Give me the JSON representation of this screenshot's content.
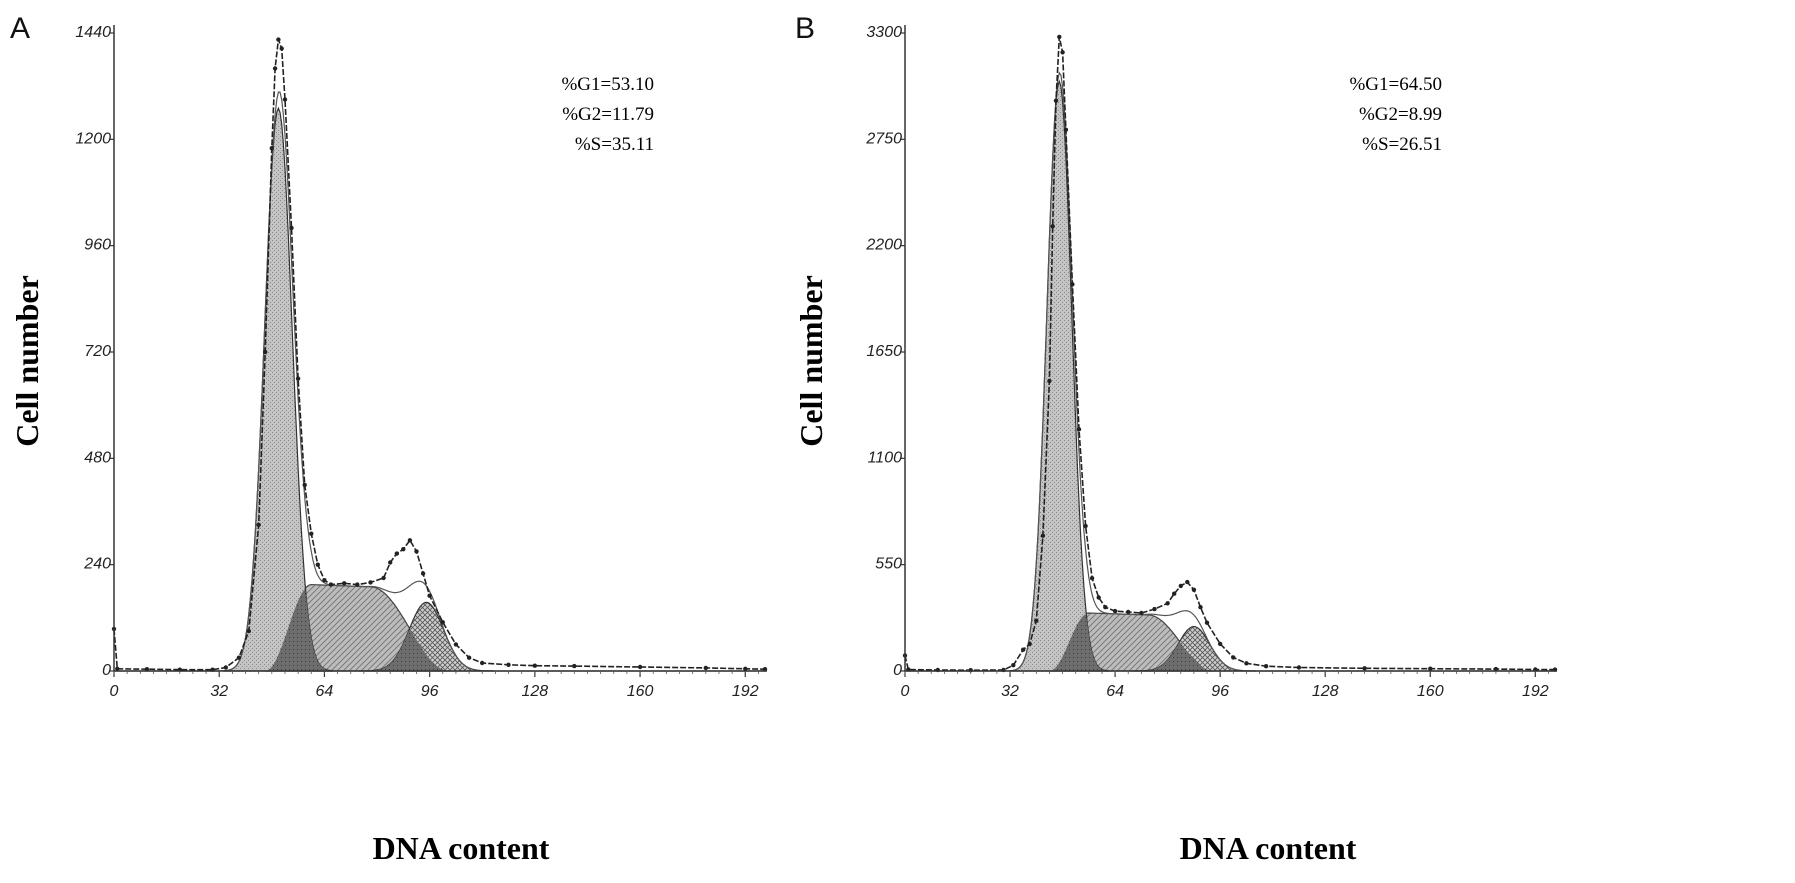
{
  "chart_data": [
    {
      "type": "area",
      "panel_label": "A",
      "xlabel": "DNA content",
      "ylabel": "Cell number",
      "xlim": [
        0,
        198
      ],
      "ylim": [
        0,
        1440
      ],
      "x_ticks": [
        0,
        32,
        64,
        96,
        128,
        160,
        192
      ],
      "y_ticks": [
        0,
        240,
        480,
        720,
        960,
        1200,
        1440
      ],
      "annotations": [
        "%G1=53.10",
        "%G2=11.79",
        "%S=35.11"
      ],
      "components": {
        "g1": {
          "center": 50,
          "sigma": 4.2,
          "peak": 1270
        },
        "g2": {
          "center": 95,
          "sigma": 5.2,
          "peak": 155
        },
        "s": {
          "start": 46,
          "end": 102,
          "left_rise": 60,
          "plateau": 195,
          "plateau_end": 78,
          "plateau_end_value": 190
        }
      },
      "measured": [
        [
          0,
          95
        ],
        [
          1,
          5
        ],
        [
          10,
          4
        ],
        [
          20,
          3
        ],
        [
          30,
          3
        ],
        [
          34,
          8
        ],
        [
          38,
          30
        ],
        [
          41,
          90
        ],
        [
          44,
          330
        ],
        [
          46,
          720
        ],
        [
          48,
          1180
        ],
        [
          49,
          1360
        ],
        [
          50,
          1425
        ],
        [
          51,
          1405
        ],
        [
          52,
          1290
        ],
        [
          54,
          1000
        ],
        [
          56,
          660
        ],
        [
          58,
          420
        ],
        [
          60,
          310
        ],
        [
          62,
          240
        ],
        [
          64,
          205
        ],
        [
          66,
          195
        ],
        [
          70,
          198
        ],
        [
          74,
          195
        ],
        [
          78,
          200
        ],
        [
          82,
          210
        ],
        [
          84,
          245
        ],
        [
          86,
          265
        ],
        [
          88,
          275
        ],
        [
          90,
          295
        ],
        [
          92,
          270
        ],
        [
          94,
          220
        ],
        [
          96,
          170
        ],
        [
          100,
          110
        ],
        [
          104,
          60
        ],
        [
          108,
          30
        ],
        [
          112,
          18
        ],
        [
          120,
          14
        ],
        [
          128,
          12
        ],
        [
          140,
          11
        ],
        [
          160,
          9
        ],
        [
          180,
          7
        ],
        [
          192,
          5
        ],
        [
          198,
          4
        ]
      ]
    },
    {
      "type": "area",
      "panel_label": "B",
      "xlabel": "DNA content",
      "ylabel": "Cell number",
      "xlim": [
        0,
        198
      ],
      "ylim": [
        0,
        3300
      ],
      "x_ticks": [
        0,
        32,
        64,
        96,
        128,
        160,
        192
      ],
      "y_ticks": [
        0,
        550,
        1100,
        1650,
        2200,
        2750,
        3300
      ],
      "annotations": [
        "%G1=64.50",
        "%G2=8.99",
        "%S=26.51"
      ],
      "components": {
        "g1": {
          "center": 47,
          "sigma": 3.8,
          "peak": 3050
        },
        "g2": {
          "center": 88,
          "sigma": 4.8,
          "peak": 230
        },
        "s": {
          "start": 44,
          "end": 94,
          "left_rise": 56,
          "plateau": 300,
          "plateau_end": 74,
          "plateau_end_value": 290
        }
      },
      "measured": [
        [
          0,
          80
        ],
        [
          1,
          8
        ],
        [
          10,
          5
        ],
        [
          20,
          4
        ],
        [
          30,
          5
        ],
        [
          33,
          30
        ],
        [
          36,
          110
        ],
        [
          38,
          140
        ],
        [
          40,
          260
        ],
        [
          42,
          700
        ],
        [
          44,
          1500
        ],
        [
          45,
          2300
        ],
        [
          46,
          2950
        ],
        [
          47,
          3280
        ],
        [
          48,
          3200
        ],
        [
          49,
          2800
        ],
        [
          51,
          2000
        ],
        [
          53,
          1250
        ],
        [
          55,
          750
        ],
        [
          57,
          480
        ],
        [
          59,
          380
        ],
        [
          61,
          330
        ],
        [
          64,
          310
        ],
        [
          68,
          305
        ],
        [
          72,
          300
        ],
        [
          76,
          320
        ],
        [
          80,
          350
        ],
        [
          82,
          400
        ],
        [
          84,
          440
        ],
        [
          86,
          460
        ],
        [
          88,
          420
        ],
        [
          90,
          330
        ],
        [
          92,
          250
        ],
        [
          96,
          140
        ],
        [
          100,
          70
        ],
        [
          104,
          40
        ],
        [
          110,
          25
        ],
        [
          120,
          18
        ],
        [
          140,
          14
        ],
        [
          160,
          12
        ],
        [
          180,
          10
        ],
        [
          192,
          8
        ],
        [
          198,
          7
        ]
      ]
    }
  ]
}
